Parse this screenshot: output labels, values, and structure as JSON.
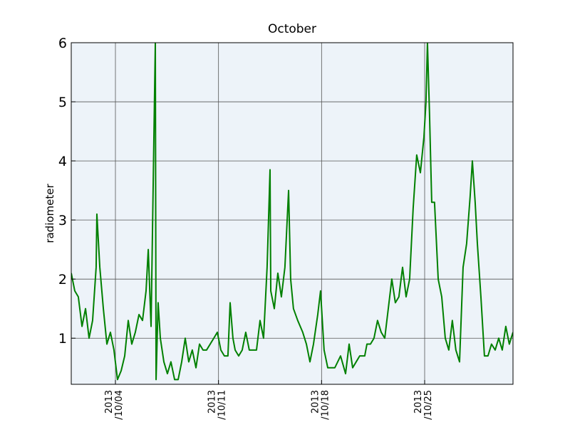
{
  "chart_data": {
    "type": "line",
    "title": "October",
    "ylabel": "radiometer",
    "x": [
      1.0,
      1.24,
      1.48,
      1.73,
      1.97,
      2.21,
      2.45,
      2.69,
      2.74,
      2.94,
      3.18,
      3.42,
      3.66,
      3.9,
      4.14,
      4.39,
      4.63,
      4.87,
      5.11,
      5.35,
      5.6,
      5.84,
      6.08,
      6.23,
      6.42,
      6.71,
      6.76,
      6.9,
      7.05,
      7.29,
      7.53,
      7.77,
      8.02,
      8.26,
      8.5,
      8.74,
      8.98,
      9.22,
      9.47,
      9.71,
      9.95,
      10.19,
      10.68,
      10.92,
      11.16,
      11.4,
      11.64,
      11.79,
      11.98,
      12.13,
      12.37,
      12.61,
      12.85,
      13.09,
      13.34,
      13.58,
      13.82,
      14.06,
      14.3,
      14.5,
      14.55,
      14.79,
      15.03,
      15.27,
      15.51,
      15.76,
      15.9,
      16.09,
      16.38,
      16.72,
      16.97,
      17.21,
      17.45,
      17.74,
      17.93,
      18.17,
      18.42,
      18.66,
      18.9,
      19.29,
      19.63,
      19.87,
      20.11,
      20.35,
      20.59,
      20.93,
      21.08,
      21.32,
      21.56,
      21.8,
      22.05,
      22.29,
      22.53,
      22.77,
      23.01,
      23.25,
      23.5,
      23.74,
      23.98,
      24.22,
      24.46,
      24.71,
      24.95,
      25.09,
      25.19,
      25.33,
      25.48,
      25.67,
      25.92,
      26.16,
      26.4,
      26.64,
      26.88,
      27.12,
      27.37,
      27.61,
      27.85,
      28.09,
      28.24,
      28.43,
      28.58,
      28.82,
      29.06,
      29.3,
      29.54,
      29.79,
      30.03,
      30.27,
      30.51,
      30.75,
      31.0
    ],
    "series": [
      {
        "name": "radiometer",
        "color": "#008000",
        "values": [
          2.1,
          1.8,
          1.7,
          1.2,
          1.5,
          1.0,
          1.3,
          2.2,
          3.1,
          2.2,
          1.5,
          0.9,
          1.1,
          0.8,
          0.3,
          0.45,
          0.7,
          1.3,
          0.9,
          1.1,
          1.4,
          1.3,
          1.8,
          2.5,
          1.2,
          6.0,
          0.3,
          1.6,
          1.0,
          0.6,
          0.4,
          0.6,
          0.3,
          0.3,
          0.6,
          1.0,
          0.6,
          0.8,
          0.5,
          0.9,
          0.8,
          0.8,
          1.0,
          1.1,
          0.8,
          0.7,
          0.7,
          1.6,
          1.0,
          0.8,
          0.7,
          0.8,
          1.1,
          0.8,
          0.8,
          0.8,
          1.3,
          1.0,
          2.2,
          3.85,
          1.8,
          1.5,
          2.1,
          1.7,
          2.2,
          3.5,
          2.0,
          1.5,
          1.3,
          1.1,
          0.9,
          0.6,
          0.9,
          1.4,
          1.8,
          0.8,
          0.5,
          0.5,
          0.5,
          0.7,
          0.4,
          0.9,
          0.5,
          0.6,
          0.7,
          0.7,
          0.9,
          0.9,
          1.0,
          1.3,
          1.1,
          1.0,
          1.5,
          2.0,
          1.6,
          1.7,
          2.2,
          1.7,
          2.0,
          3.2,
          4.1,
          3.8,
          4.4,
          5.0,
          6.0,
          4.8,
          3.3,
          3.3,
          2.0,
          1.7,
          1.0,
          0.8,
          1.3,
          0.8,
          0.6,
          2.2,
          2.6,
          3.4,
          4.0,
          3.3,
          2.6,
          1.7,
          0.7,
          0.7,
          0.9,
          0.8,
          1.0,
          0.8,
          1.2,
          0.9,
          1.1
        ]
      }
    ],
    "xlim": [
      1,
      31
    ],
    "xticks": [
      {
        "value": 4,
        "label": "2013\n/10/04"
      },
      {
        "value": 11,
        "label": "2013\n/10/11"
      },
      {
        "value": 18,
        "label": "2013\n/10/18"
      },
      {
        "value": 25,
        "label": "2013\n/10/25"
      }
    ],
    "ylim": [
      0.22,
      6
    ],
    "yticks": [
      1,
      2,
      3,
      4,
      5,
      6
    ],
    "grid": true,
    "background": "#edf3f9"
  }
}
